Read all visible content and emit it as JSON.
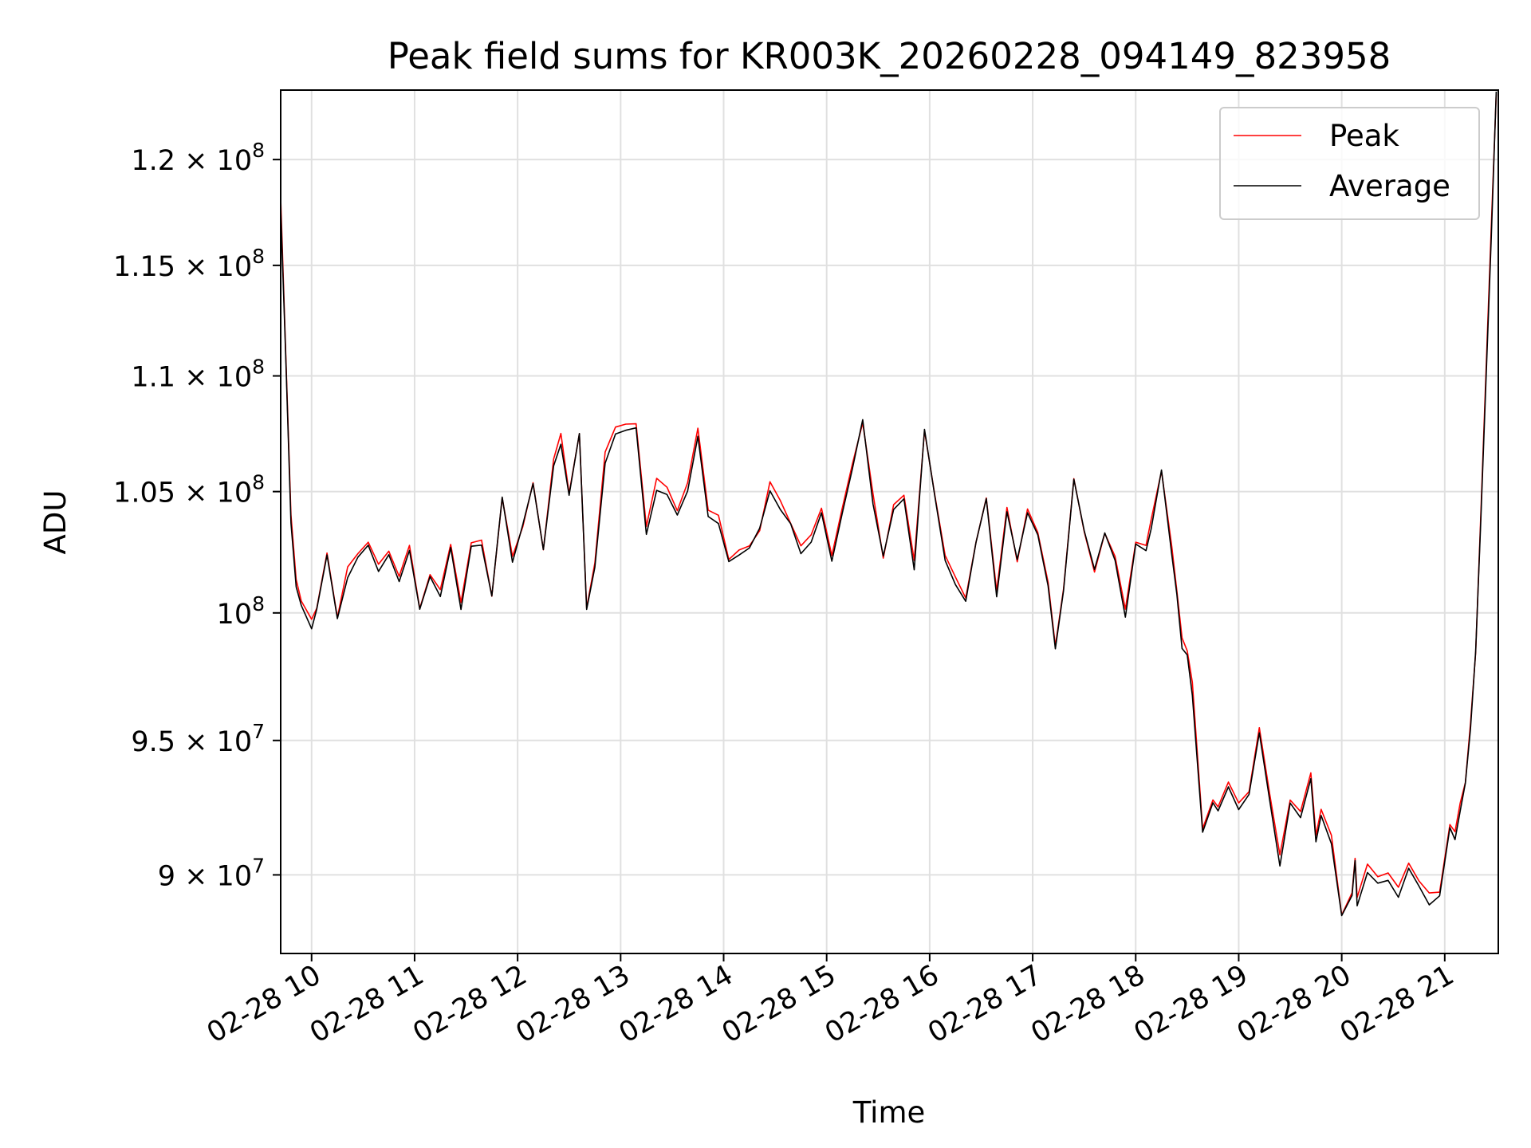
{
  "chart_data": {
    "type": "line",
    "title": "Peak field sums for KR003K_20260228_094149_823958",
    "xlabel": "Time",
    "ylabel": "ADU",
    "y_scale": "log",
    "grid": true,
    "legend_placement": "top-right",
    "xlim_hours": [
      9.7,
      21.52
    ],
    "ylim": [
      87200000,
      123400000
    ],
    "x_ticks": [
      {
        "hour": 10,
        "label": "02-28 10"
      },
      {
        "hour": 11,
        "label": "02-28 11"
      },
      {
        "hour": 12,
        "label": "02-28 12"
      },
      {
        "hour": 13,
        "label": "02-28 13"
      },
      {
        "hour": 14,
        "label": "02-28 14"
      },
      {
        "hour": 15,
        "label": "02-28 15"
      },
      {
        "hour": 16,
        "label": "02-28 16"
      },
      {
        "hour": 17,
        "label": "02-28 17"
      },
      {
        "hour": 18,
        "label": "02-28 18"
      },
      {
        "hour": 19,
        "label": "02-28 19"
      },
      {
        "hour": 20,
        "label": "02-28 20"
      },
      {
        "hour": 21,
        "label": "02-28 21"
      }
    ],
    "y_ticks": [
      {
        "value": 90000000,
        "mantissa": "9 × 10",
        "exp": "7"
      },
      {
        "value": 95000000,
        "mantissa": "9.5 × 10",
        "exp": "7"
      },
      {
        "value": 100000000,
        "mantissa": "10",
        "exp": "8"
      },
      {
        "value": 105000000,
        "mantissa": "1.05 × 10",
        "exp": "8"
      },
      {
        "value": 110000000,
        "mantissa": "1.1 × 10",
        "exp": "8"
      },
      {
        "value": 115000000,
        "mantissa": "1.15 × 10",
        "exp": "8"
      },
      {
        "value": 120000000,
        "mantissa": "1.2 × 10",
        "exp": "8"
      }
    ],
    "x_hours": [
      9.7,
      9.75,
      9.8,
      9.85,
      9.9,
      10.0,
      10.05,
      10.15,
      10.25,
      10.35,
      10.45,
      10.55,
      10.65,
      10.75,
      10.85,
      10.95,
      11.05,
      11.15,
      11.25,
      11.35,
      11.45,
      11.55,
      11.65,
      11.75,
      11.85,
      11.95,
      12.05,
      12.15,
      12.25,
      12.35,
      12.42,
      12.5,
      12.6,
      12.67,
      12.75,
      12.85,
      12.95,
      13.05,
      13.15,
      13.25,
      13.35,
      13.45,
      13.55,
      13.65,
      13.75,
      13.85,
      13.95,
      14.05,
      14.15,
      14.25,
      14.35,
      14.45,
      14.55,
      14.65,
      14.75,
      14.85,
      14.95,
      15.05,
      15.15,
      15.25,
      15.35,
      15.45,
      15.55,
      15.65,
      15.75,
      15.85,
      15.95,
      16.05,
      16.15,
      16.25,
      16.35,
      16.45,
      16.55,
      16.65,
      16.75,
      16.85,
      16.95,
      17.05,
      17.15,
      17.22,
      17.3,
      17.4,
      17.5,
      17.6,
      17.7,
      17.8,
      17.9,
      18.0,
      18.1,
      18.15,
      18.25,
      18.35,
      18.4,
      18.45,
      18.5,
      18.55,
      18.65,
      18.75,
      18.8,
      18.9,
      19.0,
      19.1,
      19.2,
      19.3,
      19.4,
      19.5,
      19.6,
      19.7,
      19.75,
      19.8,
      19.9,
      20.0,
      20.1,
      20.13,
      20.15,
      20.25,
      20.35,
      20.45,
      20.55,
      20.65,
      20.75,
      20.85,
      20.95,
      21.05,
      21.1,
      21.15,
      21.2,
      21.25,
      21.3,
      21.35,
      21.4,
      21.45,
      21.5
    ],
    "series": [
      {
        "name": "Peak",
        "color": "#ff0000",
        "values": [
          118000000,
          111000000,
          104000000,
          101400000,
          100500000,
          99700000,
          100300000,
          102500000,
          99800000,
          101700000,
          102300000,
          103000000,
          101800000,
          102400000,
          101500000,
          102600000,
          100200000,
          101500000,
          101000000,
          102700000,
          100400000,
          102800000,
          103000000,
          100800000,
          104800000,
          102300000,
          103700000,
          105500000,
          102600000,
          106200000,
          107400000,
          105000000,
          107500000,
          100300000,
          102000000,
          106500000,
          107600000,
          107900000,
          107800000,
          103500000,
          105400000,
          105200000,
          104300000,
          105300000,
          107600000,
          104300000,
          104000000,
          102300000,
          102700000,
          102800000,
          103500000,
          105300000,
          104600000,
          103700000,
          102600000,
          103200000,
          104400000,
          102400000,
          104400000,
          106300000,
          108100000,
          104800000,
          102400000,
          104600000,
          105000000,
          102100000,
          107700000,
          104900000,
          102400000,
          101500000,
          100600000,
          103000000,
          104900000,
          101000000,
          104300000,
          102200000,
          104200000,
          103400000,
          101400000,
          98600000,
          101000000,
          105700000,
          103400000,
          101800000,
          103300000,
          102300000,
          100200000,
          102900000,
          102600000,
          103700000,
          106000000,
          102700000,
          100800000,
          98900000,
          98400000,
          97100000,
          91800000,
          92900000,
          92500000,
          93500000,
          92500000,
          93200000,
          95600000,
          93000000,
          90600000,
          92800000,
          92300000,
          93700000,
          91300000,
          92500000,
          91400000,
          88700000,
          89500000,
          90600000,
          89200000,
          90400000,
          89800000,
          90100000,
          89400000,
          90500000,
          89700000,
          89200000,
          89500000,
          92000000,
          91500000,
          92700000,
          93500000,
          95500000,
          98500000,
          104000000,
          110000000,
          116500000,
          123400000
        ]
      },
      {
        "name": "Average",
        "color": "#000000",
        "values": [
          117700000,
          110700000,
          103800000,
          101200000,
          100300000,
          99500000,
          100100000,
          102300000,
          99600000,
          101500000,
          102100000,
          102800000,
          101600000,
          102200000,
          101300000,
          102400000,
          100000000,
          101300000,
          100800000,
          102500000,
          100200000,
          102600000,
          102800000,
          100600000,
          104600000,
          102100000,
          103500000,
          105300000,
          102400000,
          106000000,
          107200000,
          104800000,
          107300000,
          100100000,
          101800000,
          106300000,
          107400000,
          107700000,
          107600000,
          103300000,
          105200000,
          105000000,
          104100000,
          105100000,
          107400000,
          104100000,
          103800000,
          102100000,
          102500000,
          102600000,
          103300000,
          105100000,
          104400000,
          103500000,
          102400000,
          103000000,
          104200000,
          102200000,
          104200000,
          106100000,
          107900000,
          104600000,
          102200000,
          104400000,
          104800000,
          101900000,
          107500000,
          104700000,
          102200000,
          101300000,
          100400000,
          102800000,
          104700000,
          100800000,
          104100000,
          102000000,
          104000000,
          103200000,
          101200000,
          98400000,
          100800000,
          105500000,
          103200000,
          101600000,
          103100000,
          102100000,
          100000000,
          102700000,
          102400000,
          103500000,
          105800000,
          102500000,
          100600000,
          98700000,
          98200000,
          96900000,
          91600000,
          92700000,
          92300000,
          93300000,
          92300000,
          93000000,
          95400000,
          92800000,
          90400000,
          92600000,
          92100000,
          93500000,
          91100000,
          92300000,
          91200000,
          88500000,
          89300000,
          90400000,
          89000000,
          90200000,
          89600000,
          89900000,
          89200000,
          90300000,
          89500000,
          89000000,
          89300000,
          91800000,
          91300000,
          92500000,
          93300000,
          95300000,
          98300000,
          103800000,
          109800000,
          116300000,
          123200000
        ]
      }
    ]
  }
}
